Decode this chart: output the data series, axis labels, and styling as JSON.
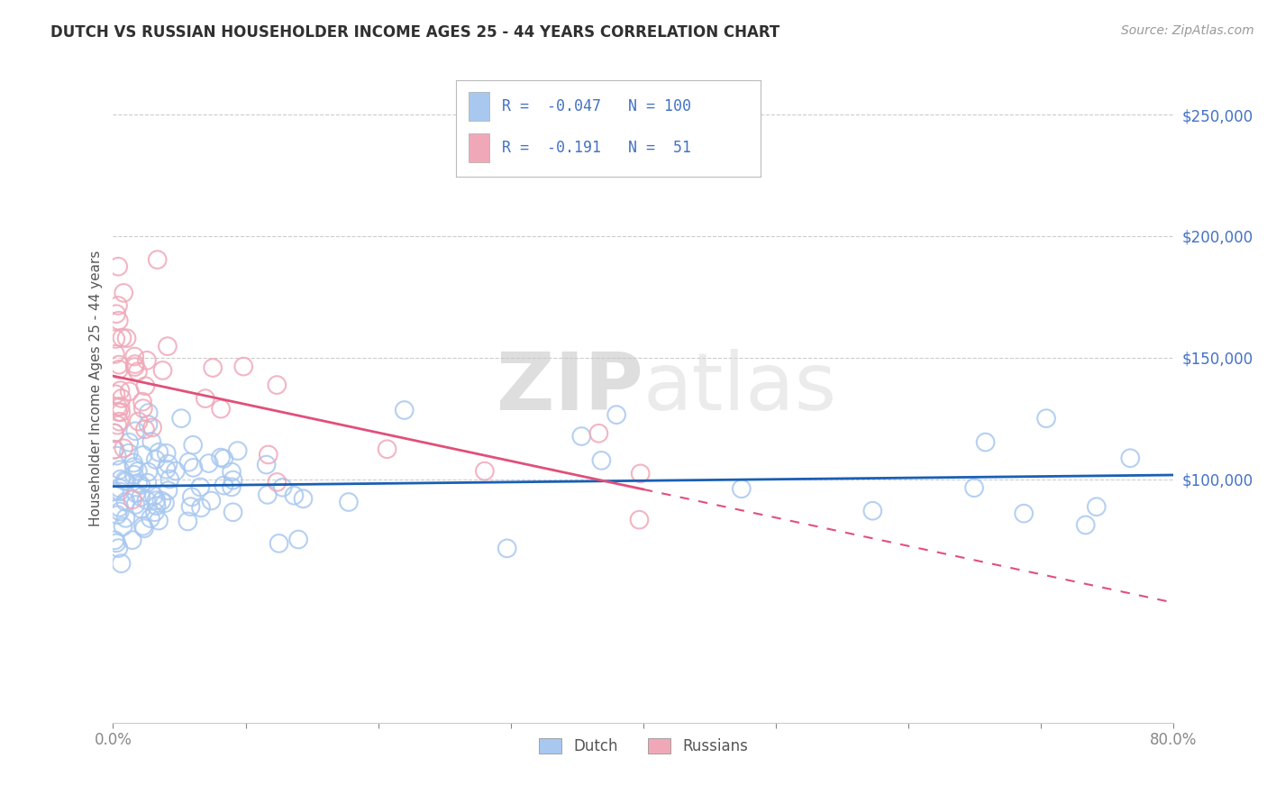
{
  "title": "DUTCH VS RUSSIAN HOUSEHOLDER INCOME AGES 25 - 44 YEARS CORRELATION CHART",
  "source": "Source: ZipAtlas.com",
  "ylabel": "Householder Income Ages 25 - 44 years",
  "xlim": [
    0.0,
    0.8
  ],
  "ylim": [
    0,
    275000
  ],
  "dutch_R": -0.047,
  "dutch_N": 100,
  "russian_R": -0.191,
  "russian_N": 51,
  "dutch_color": "#a8c8f0",
  "russian_color": "#f0a8b8",
  "dutch_line_color": "#1a5fb4",
  "russian_line_color": "#e0507a",
  "background_color": "#ffffff",
  "grid_color": "#cccccc",
  "title_color": "#303030",
  "source_color": "#999999",
  "axis_label_color": "#555555",
  "tick_label_color": "#4472c4",
  "ytick_positions": [
    100000,
    150000,
    200000,
    250000
  ],
  "ytick_labels": [
    "$100,000",
    "$150,000",
    "$200,000",
    "$250,000"
  ],
  "xtick_positions": [
    0.0,
    0.1,
    0.2,
    0.3,
    0.4,
    0.5,
    0.6,
    0.7,
    0.8
  ],
  "xtick_labels": [
    "0.0%",
    "",
    "",
    "",
    "",
    "",
    "",
    "",
    "80.0%"
  ],
  "watermark_zip": "ZIP",
  "watermark_atlas": "atlas",
  "legend_dutch_label": "Dutch",
  "legend_russian_label": "Russians"
}
